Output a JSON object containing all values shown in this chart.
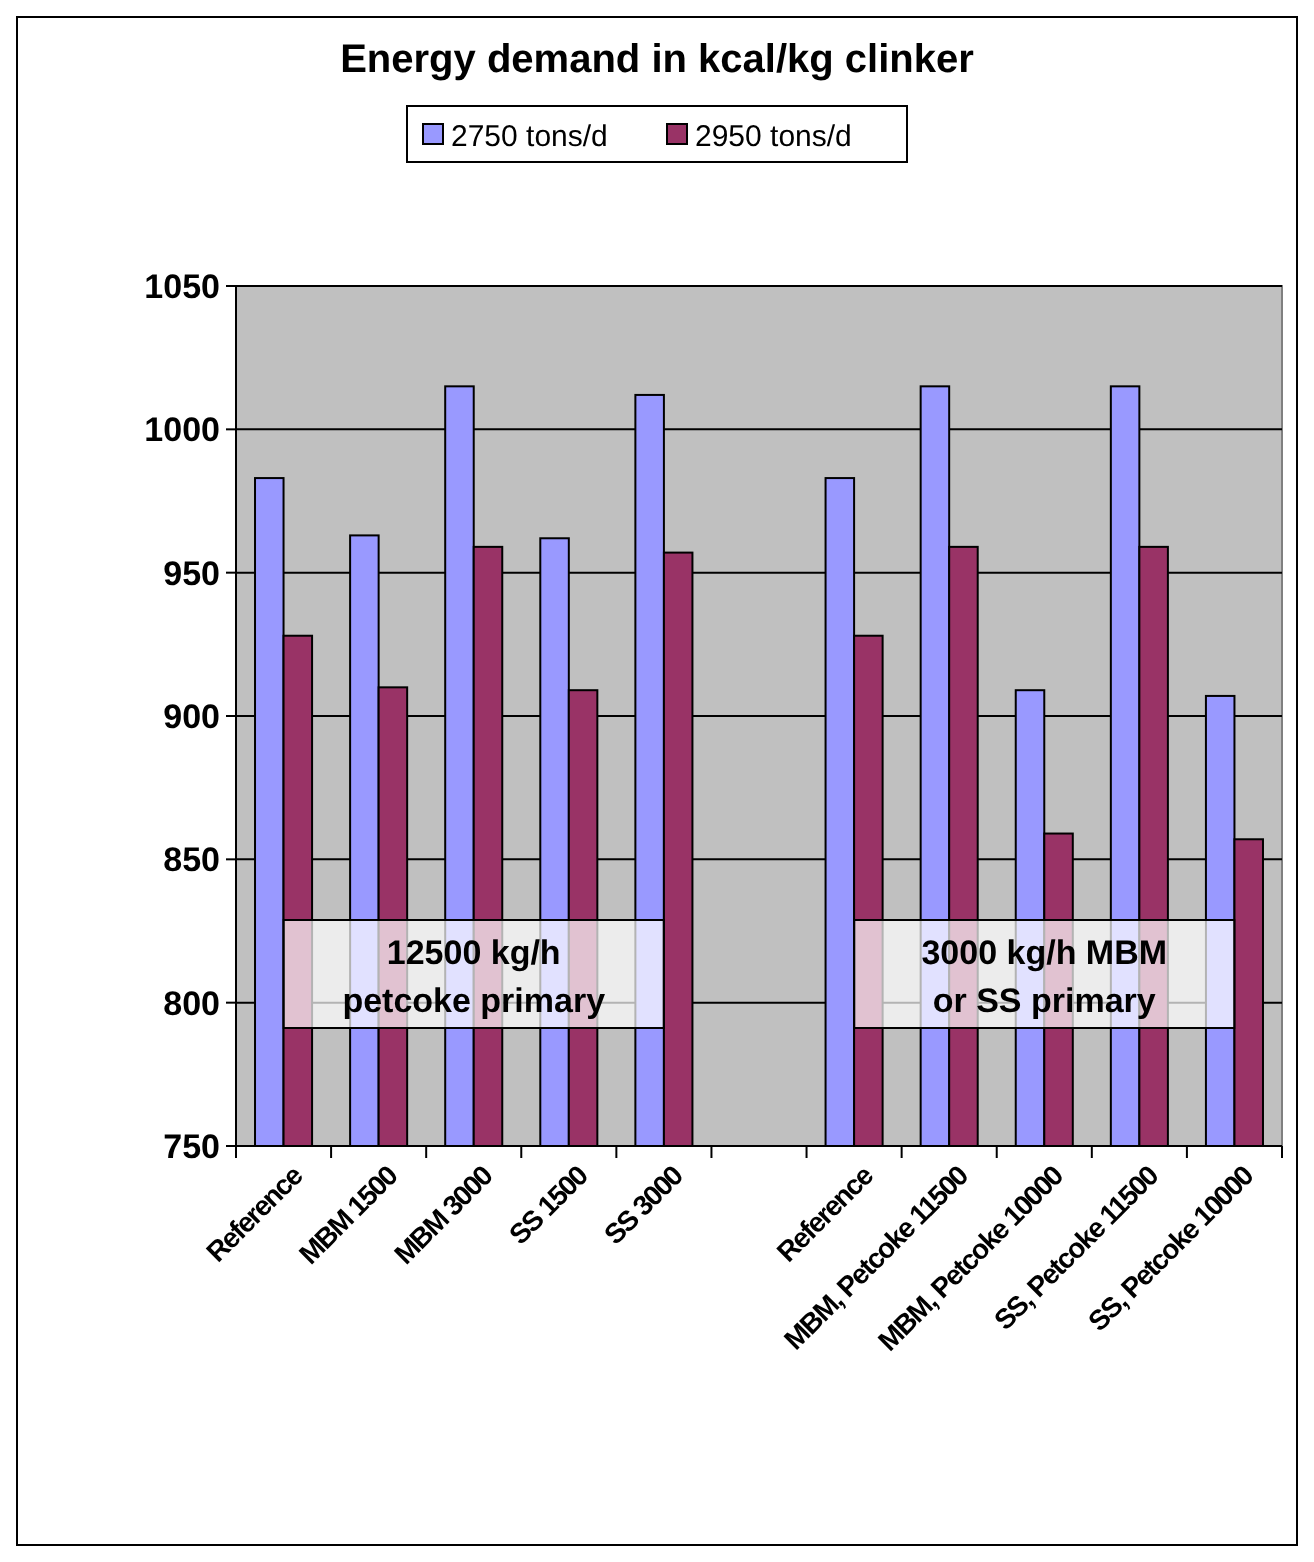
{
  "chart_data": {
    "type": "bar",
    "title": "Energy demand in kcal/kg clinker",
    "categories": [
      "Reference",
      "MBM 1500",
      "MBM 3000",
      "SS 1500",
      "SS 3000",
      null,
      "Reference",
      "MBM, Petcoke 11500",
      "MBM, Petcoke 10000",
      "SS, Petcoke 11500",
      "SS, Petcoke 10000"
    ],
    "series": [
      {
        "name": "2750 tons/d",
        "color": "#9999ff",
        "values": [
          983,
          963,
          1015,
          962,
          1012,
          null,
          983,
          1015,
          909,
          1015,
          907
        ]
      },
      {
        "name": "2950 tons/d",
        "color": "#993366",
        "values": [
          928,
          910,
          959,
          909,
          957,
          null,
          928,
          959,
          859,
          959,
          857
        ]
      }
    ],
    "ylim": [
      750,
      1050
    ],
    "yticks": [
      750,
      800,
      850,
      900,
      950,
      1000,
      1050
    ],
    "grid": "y",
    "legend": "top",
    "annotations": [
      "12500 kg/h\npetcoke primary",
      "3000 kg/h MBM\nor SS primary"
    ]
  }
}
